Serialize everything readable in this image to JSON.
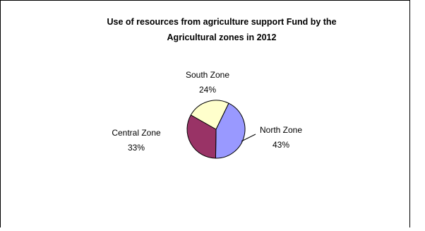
{
  "chart_data": {
    "type": "pie",
    "title_lines": [
      "Use of resources from agriculture support Fund by the",
      "Agricultural zones in 2012"
    ],
    "slices": [
      {
        "name": "North Zone",
        "value": 43,
        "label": "43%",
        "color": "#9999ff"
      },
      {
        "name": "Central Zone",
        "value": 33,
        "label": "33%",
        "color": "#993366"
      },
      {
        "name": "South Zone",
        "value": 24,
        "label": "24%",
        "color": "#ffffcc"
      }
    ],
    "legend": "none",
    "label_style": "category name and percentage, outside slices"
  }
}
